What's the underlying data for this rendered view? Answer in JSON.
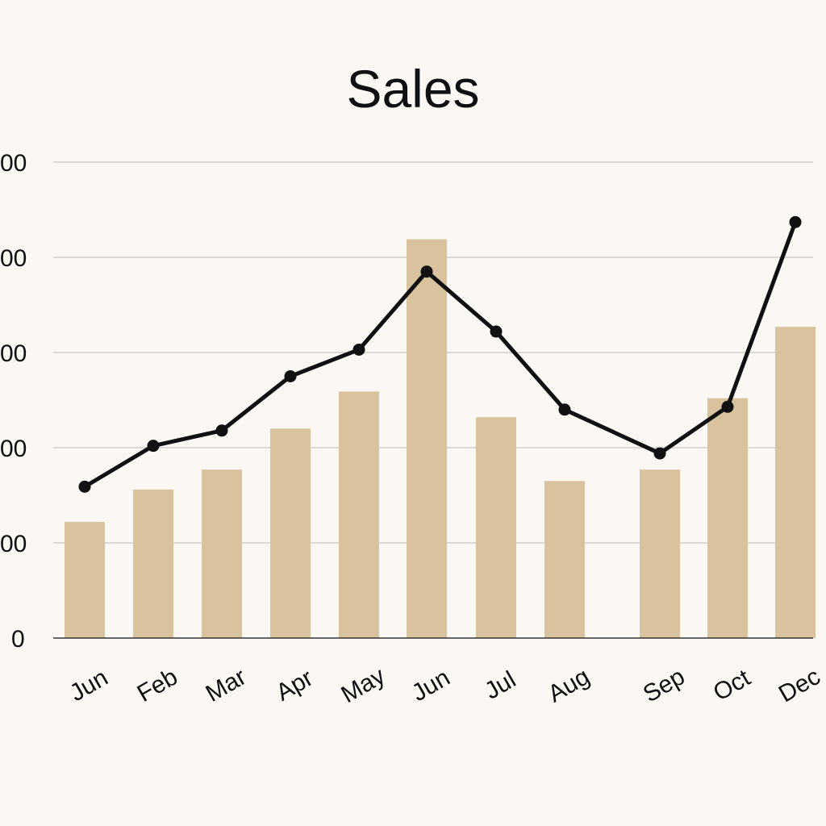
{
  "chart_data": {
    "type": "bar",
    "title": "Sales",
    "xlabel": "",
    "ylabel": "",
    "categories": [
      "Jun",
      "Feb",
      "Mar",
      "Apr",
      "May",
      "Jun",
      "Jul",
      "Aug",
      "Sep",
      "Oct",
      "Dec"
    ],
    "y_tick_labels": [
      "0",
      "00",
      "00",
      "00",
      "00",
      "00"
    ],
    "ylim": [
      0,
      500
    ],
    "grid": true,
    "legend": "none",
    "series": [
      {
        "type": "bar",
        "values": [
          122,
          156,
          177,
          220,
          259,
          419,
          232,
          165,
          177,
          252,
          327
        ],
        "color": "#d8c39e"
      },
      {
        "type": "line",
        "values": [
          159,
          202,
          218,
          275,
          303,
          385,
          322,
          240,
          194,
          243,
          437
        ],
        "color": "#111111"
      }
    ]
  }
}
